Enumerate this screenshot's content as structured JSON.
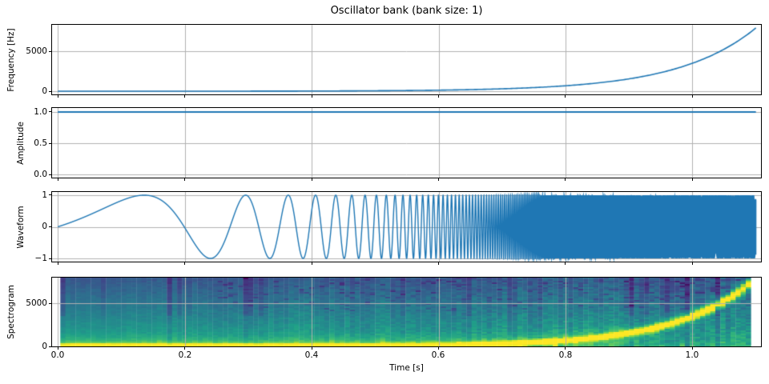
{
  "figure": {
    "title": "Oscillator bank (bank size: 1)",
    "bank_size": 1,
    "background": "#ffffff"
  },
  "axes": {
    "xlabel": "Time [s]",
    "xlim": [
      -0.009,
      1.108
    ],
    "xticks": [
      {
        "value": 0.0,
        "label": "0.0"
      },
      {
        "value": 0.2,
        "label": "0.2"
      },
      {
        "value": 0.4,
        "label": "0.4"
      },
      {
        "value": 0.6,
        "label": "0.6"
      },
      {
        "value": 0.8,
        "label": "0.8"
      },
      {
        "value": 1.0,
        "label": "1.0"
      }
    ],
    "grid_color": "#b0b0b0",
    "spine_color": "#000000",
    "text_color": "#000000",
    "line_color": "#1f77b4"
  },
  "chart_data": [
    {
      "type": "line",
      "name": "frequency",
      "ylabel": "Frequency [Hz]",
      "color": "#1f77b4",
      "ylim": [
        -396,
        8316
      ],
      "yticks": [
        {
          "value": 5000,
          "label": "5000"
        },
        {
          "value": 0,
          "label": "0"
        }
      ],
      "series": {
        "kind": "exponential-sweep",
        "f0_hz": 1.0,
        "f1_hz": 7920.0,
        "duration_s": 1.1
      },
      "points": [
        [
          0.0,
          1.0
        ],
        [
          0.2,
          5.1
        ],
        [
          0.4,
          26.2
        ],
        [
          0.6,
          133.8
        ],
        [
          0.8,
          684.0
        ],
        [
          1.0,
          3497.0
        ],
        [
          1.1,
          7920.0
        ]
      ]
    },
    {
      "type": "line",
      "name": "amplitude",
      "ylabel": "Amplitude",
      "color": "#1f77b4",
      "ylim": [
        -0.051,
        1.064
      ],
      "yticks": [
        {
          "value": 1.0,
          "label": "1.0"
        },
        {
          "value": 0.5,
          "label": "0.5"
        },
        {
          "value": 0.0,
          "label": "0.0"
        }
      ],
      "series": {
        "kind": "constant",
        "value": 1.0,
        "duration_s": 1.1
      }
    },
    {
      "type": "line",
      "name": "waveform",
      "ylabel": "Waveform",
      "color": "#1f77b4",
      "ylim": [
        -1.1,
        1.1
      ],
      "yticks": [
        {
          "value": 1,
          "label": "1"
        },
        {
          "value": 0,
          "label": "0"
        },
        {
          "value": -1,
          "label": "−1"
        }
      ],
      "series": {
        "kind": "exponential-chirp",
        "f0_hz": 1.0,
        "f1_hz": 7920.0,
        "duration_s": 1.1,
        "amplitude": 1.0
      }
    },
    {
      "type": "heatmap",
      "name": "spectrogram",
      "ylabel": "Spectrogram",
      "colormap": "viridis",
      "ylim": [
        0,
        8000
      ],
      "yticks": [
        {
          "value": 5000,
          "label": "5000"
        },
        {
          "value": 0,
          "label": "0"
        }
      ],
      "time_extent_s": [
        0.004,
        1.092
      ],
      "freq_extent_hz": [
        0,
        8000
      ],
      "ridge": {
        "kind": "exponential-sweep",
        "f0_hz": 1.0,
        "f1_hz": 7920.0,
        "duration_s": 1.1
      }
    }
  ]
}
